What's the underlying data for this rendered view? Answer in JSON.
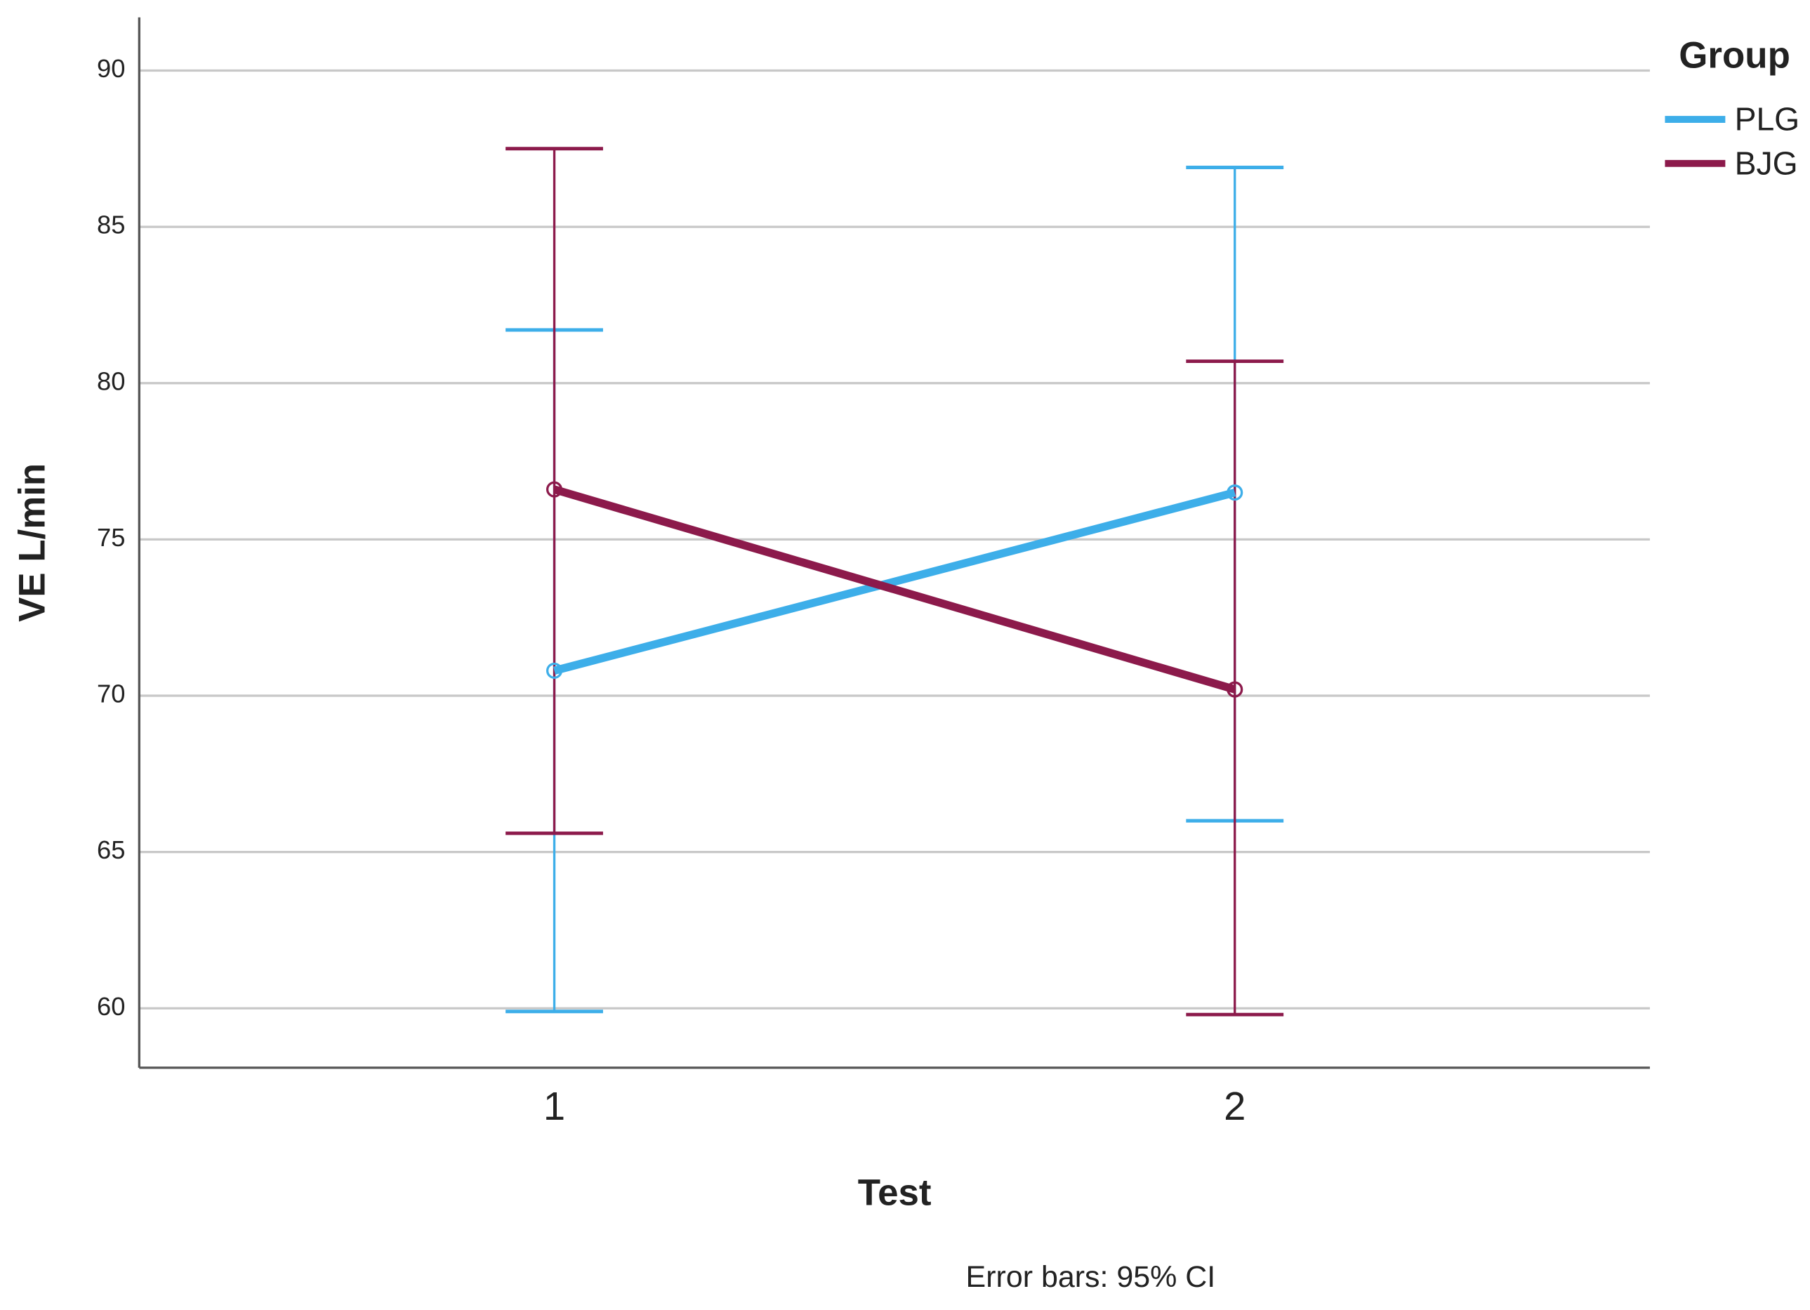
{
  "chart_data": {
    "type": "line",
    "x_label": "Test",
    "y_label": "VE L/min",
    "x": [
      1,
      2
    ],
    "xlim": [
      0.39,
      2.61
    ],
    "xticks": [
      1,
      2
    ],
    "ylim": [
      58.1,
      91.7
    ],
    "yticks": [
      60,
      65,
      70,
      75,
      80,
      85,
      90
    ],
    "grid": true,
    "legend_title": "Group",
    "legend_position": "right",
    "series": [
      {
        "name": "PLG",
        "color": "#3daee9",
        "values": [
          70.8,
          76.5
        ],
        "upper": [
          81.7,
          86.9
        ],
        "lower": [
          59.9,
          66.0
        ]
      },
      {
        "name": "BJG",
        "color": "#8c1a4b",
        "values": [
          76.6,
          70.2
        ],
        "upper": [
          87.5,
          80.7
        ],
        "lower": [
          65.6,
          59.8
        ]
      }
    ],
    "note": "Error bars: 95% CI"
  }
}
